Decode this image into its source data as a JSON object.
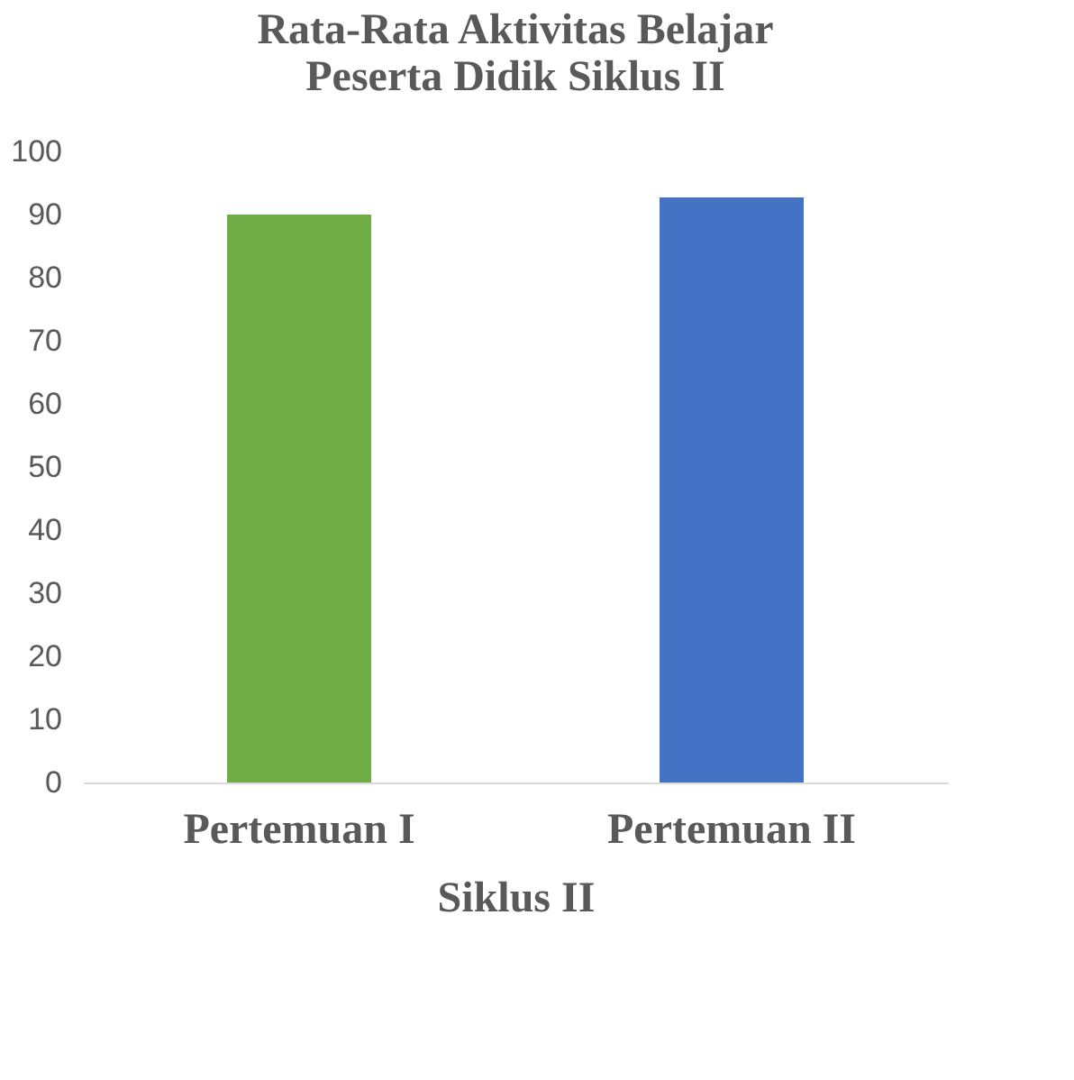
{
  "chart_data": {
    "type": "bar",
    "title": "Rata-Rata Aktivitas Belajar Peserta Didik Siklus II",
    "xlabel": "Siklus II",
    "categories": [
      "Pertemuan I",
      "Pertemuan II"
    ],
    "values": [
      90,
      92.7
    ],
    "colors": [
      "#70ad47",
      "#4472c4"
    ],
    "ylim": [
      0,
      100
    ],
    "yticks": [
      0,
      10,
      20,
      30,
      40,
      50,
      60,
      70,
      80,
      90,
      100
    ],
    "grid": false
  }
}
